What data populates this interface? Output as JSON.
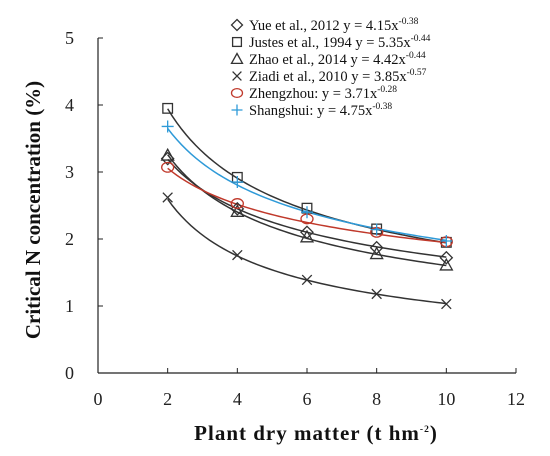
{
  "chart_data": {
    "type": "scatter",
    "xlabel": "Plant dry matter (t hm",
    "xlabel_sup": "-2",
    "xlabel_end": ")",
    "ylabel": "Critical N concentration (%)",
    "xlim": [
      0,
      12
    ],
    "ylim": [
      0,
      5
    ],
    "x_ticks": [
      "0",
      "2",
      "4",
      "6",
      "8",
      "10",
      "12"
    ],
    "y_ticks": [
      "0",
      "1",
      "2",
      "3",
      "4",
      "5"
    ],
    "x": [
      2,
      4,
      6,
      8,
      10
    ],
    "series": [
      {
        "name": "Yue et al., 2012",
        "equation": "y = 4.15x",
        "exponent": "-0.38",
        "a": 4.15,
        "b": -0.38,
        "marker": "diamond",
        "color": "#333333",
        "label_color": "#111111",
        "points": [
          3.2,
          2.45,
          2.1,
          1.87,
          1.72
        ]
      },
      {
        "name": "Justes et al., 1994",
        "equation": "y = 5.35x",
        "exponent": "-0.44",
        "a": 5.35,
        "b": -0.44,
        "marker": "square",
        "color": "#333333",
        "label_color": "#111111",
        "points": [
          3.95,
          2.92,
          2.46,
          2.15,
          1.95
        ]
      },
      {
        "name": "Zhao et al., 2014",
        "equation": "y = 4.42x",
        "exponent": "-0.44",
        "a": 4.42,
        "b": -0.44,
        "marker": "triangle",
        "color": "#333333",
        "label_color": "#111111",
        "points": [
          3.25,
          2.41,
          2.03,
          1.78,
          1.61
        ]
      },
      {
        "name": "Ziadi et al., 2010",
        "equation": "y = 3.85x",
        "exponent": "-0.57",
        "a": 3.85,
        "b": -0.57,
        "marker": "x",
        "color": "#333333",
        "label_color": "#111111",
        "points": [
          2.62,
          1.76,
          1.39,
          1.18,
          1.03
        ]
      },
      {
        "name": "Zhengzhou:",
        "equation": "y = 3.71x",
        "exponent": "-0.28",
        "a": 3.71,
        "b": -0.28,
        "marker": "circle",
        "color": "#c0392b",
        "label_color": "#c0392b",
        "points": [
          3.07,
          2.53,
          2.3,
          2.1,
          1.96
        ]
      },
      {
        "name": "Shangshui:",
        "equation": "y = 4.75x",
        "exponent": "-0.38",
        "a": 4.75,
        "b": -0.38,
        "marker": "plus",
        "color": "#2e9ad8",
        "label_color": "#2e9ad8",
        "points": [
          3.68,
          2.85,
          2.4,
          2.14,
          1.97
        ]
      }
    ],
    "grid": false,
    "legend": "top-right"
  }
}
